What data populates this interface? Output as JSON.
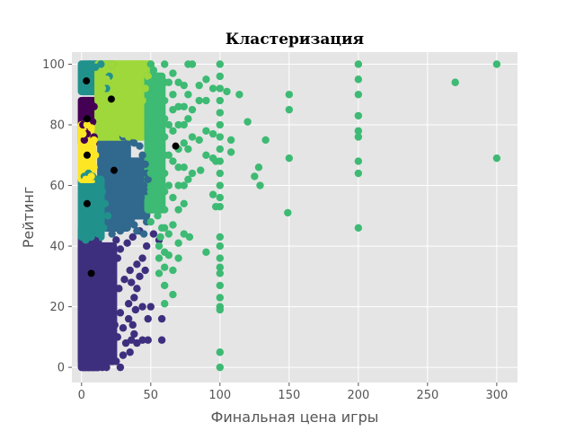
{
  "chart_data": {
    "type": "scatter",
    "title": "Кластеризация",
    "xlabel": "Финальная цена игры",
    "ylabel": "Рейтинг",
    "xlim": [
      -7,
      315
    ],
    "ylim": [
      -5,
      104
    ],
    "xticks": [
      0,
      50,
      100,
      150,
      200,
      250,
      300
    ],
    "yticks": [
      0,
      20,
      40,
      60,
      80,
      100
    ],
    "grid": true,
    "legend": "none",
    "colors": {
      "background": "#E5E5E5",
      "grid": "#FFFFFF",
      "centroid": "#000000",
      "cluster_dark": "#440154",
      "cluster_indigo": "#3E2F7E",
      "cluster_blue": "#31688E",
      "cluster_teal": "#21918C",
      "cluster_green": "#3DBA73",
      "cluster_lime": "#9FD83B",
      "cluster_yellow": "#FDE725"
    },
    "clusters": [
      {
        "color": "#3E2F7E",
        "regions": [
          [
            0,
            12,
            0,
            46
          ],
          [
            0,
            23,
            2,
            40
          ]
        ],
        "points": [
          [
            2,
            0
          ],
          [
            5,
            0
          ],
          [
            8,
            0
          ],
          [
            12,
            0
          ],
          [
            15,
            0
          ],
          [
            18,
            0
          ],
          [
            28,
            0
          ],
          [
            25,
            2
          ],
          [
            30,
            4
          ],
          [
            20,
            5
          ],
          [
            22,
            7
          ],
          [
            26,
            10
          ],
          [
            30,
            13
          ],
          [
            34,
            16
          ],
          [
            28,
            18
          ],
          [
            34,
            21
          ],
          [
            38,
            23
          ],
          [
            40,
            26
          ],
          [
            36,
            28
          ],
          [
            42,
            30
          ],
          [
            46,
            32
          ],
          [
            35,
            32
          ],
          [
            40,
            34
          ],
          [
            44,
            36
          ],
          [
            32,
            8
          ],
          [
            36,
            9
          ],
          [
            40,
            8
          ],
          [
            44,
            9
          ],
          [
            48,
            9
          ],
          [
            50,
            20
          ],
          [
            58,
            9
          ],
          [
            58,
            16
          ],
          [
            48,
            16
          ],
          [
            44,
            20
          ],
          [
            38,
            11
          ],
          [
            35,
            5
          ],
          [
            28,
            39
          ],
          [
            33,
            41
          ],
          [
            37,
            43
          ],
          [
            42,
            45
          ],
          [
            47,
            40
          ],
          [
            52,
            44
          ],
          [
            56,
            42
          ],
          [
            26,
            36
          ],
          [
            31,
            29
          ],
          [
            37,
            14
          ],
          [
            20,
            30
          ],
          [
            16,
            36
          ],
          [
            25,
            42
          ],
          [
            18,
            10
          ],
          [
            10,
            42
          ],
          [
            27,
            26
          ],
          [
            24,
            14
          ],
          [
            39,
            19
          ]
        ]
      },
      {
        "color": "#440154",
        "regions": [
          [
            0,
            9,
            74,
            88
          ]
        ],
        "points": [
          [
            2,
            75
          ],
          [
            4,
            77
          ],
          [
            6,
            79
          ],
          [
            8,
            81
          ],
          [
            3,
            83
          ],
          [
            5,
            85
          ],
          [
            7,
            87
          ],
          [
            9,
            86
          ],
          [
            1,
            80
          ],
          [
            9,
            76
          ]
        ]
      },
      {
        "color": "#31688E",
        "regions": [
          [
            14,
            33,
            46,
            76
          ],
          [
            18,
            47,
            50,
            68
          ]
        ],
        "points": [
          [
            30,
            76
          ],
          [
            34,
            75
          ],
          [
            38,
            74
          ],
          [
            42,
            73
          ],
          [
            44,
            70
          ],
          [
            46,
            67
          ],
          [
            47,
            64
          ],
          [
            45,
            60
          ],
          [
            43,
            56
          ],
          [
            40,
            52
          ],
          [
            36,
            49
          ],
          [
            32,
            47
          ],
          [
            28,
            45
          ],
          [
            22,
            44
          ],
          [
            18,
            46
          ],
          [
            47,
            48
          ],
          [
            45,
            44
          ],
          [
            44,
            50
          ],
          [
            46,
            58
          ],
          [
            48,
            62
          ],
          [
            40,
            45
          ],
          [
            38,
            47
          ]
        ]
      },
      {
        "color": "#21918C",
        "regions": [
          [
            0,
            14,
            43,
            62
          ],
          [
            0,
            20,
            91,
            100
          ]
        ],
        "points": [
          [
            2,
            63
          ],
          [
            5,
            64
          ],
          [
            8,
            63
          ],
          [
            12,
            62
          ],
          [
            15,
            58
          ],
          [
            17,
            54
          ],
          [
            19,
            50
          ],
          [
            16,
            46
          ],
          [
            12,
            44
          ],
          [
            7,
            43
          ],
          [
            3,
            42
          ],
          [
            18,
            92
          ],
          [
            20,
            96
          ],
          [
            22,
            100
          ],
          [
            14,
            100
          ],
          [
            10,
            99
          ],
          [
            6,
            100
          ],
          [
            2,
            99
          ]
        ]
      },
      {
        "color": "#FDE725",
        "regions": [
          [
            0,
            8,
            62,
            80
          ]
        ],
        "points": [
          [
            3,
            62
          ],
          [
            7,
            63
          ],
          [
            9,
            66
          ],
          [
            10,
            70
          ],
          [
            9,
            75
          ],
          [
            7,
            79
          ],
          [
            4,
            80
          ],
          [
            1,
            77
          ]
        ]
      },
      {
        "color": "#9FD83B",
        "regions": [
          [
            12,
            44,
            76,
            100
          ],
          [
            20,
            50,
            88,
            100
          ]
        ],
        "points": [
          [
            22,
            100
          ],
          [
            28,
            100
          ],
          [
            34,
            100
          ],
          [
            40,
            100
          ],
          [
            46,
            100
          ],
          [
            50,
            100
          ],
          [
            48,
            96
          ],
          [
            46,
            92
          ],
          [
            44,
            88
          ],
          [
            42,
            84
          ],
          [
            40,
            80
          ],
          [
            38,
            77
          ],
          [
            34,
            76
          ],
          [
            30,
            77
          ],
          [
            26,
            78
          ],
          [
            22,
            80
          ],
          [
            18,
            82
          ],
          [
            14,
            84
          ],
          [
            13,
            88
          ],
          [
            15,
            92
          ],
          [
            18,
            95
          ],
          [
            25,
            97
          ],
          [
            36,
            98
          ],
          [
            43,
            97
          ],
          [
            30,
            89
          ]
        ]
      },
      {
        "color": "#3DBA73",
        "regions": [
          [
            48,
            58,
            52,
            96
          ]
        ],
        "points": [
          [
            50,
            100
          ],
          [
            52,
            98
          ],
          [
            55,
            96
          ],
          [
            50,
            94
          ],
          [
            53,
            92
          ],
          [
            57,
            90
          ],
          [
            50,
            88
          ],
          [
            54,
            86
          ],
          [
            58,
            84
          ],
          [
            50,
            82
          ],
          [
            53,
            80
          ],
          [
            57,
            78
          ],
          [
            50,
            76
          ],
          [
            54,
            74
          ],
          [
            58,
            72
          ],
          [
            50,
            70
          ],
          [
            53,
            68
          ],
          [
            57,
            66
          ],
          [
            50,
            64
          ],
          [
            54,
            62
          ],
          [
            58,
            60
          ],
          [
            50,
            58
          ],
          [
            53,
            56
          ],
          [
            57,
            54
          ],
          [
            50,
            52
          ],
          [
            55,
            50
          ],
          [
            50,
            48
          ],
          [
            58,
            46
          ],
          [
            60,
            100
          ],
          [
            60,
            94
          ],
          [
            60,
            88
          ],
          [
            60,
            82
          ],
          [
            60,
            76
          ],
          [
            60,
            70
          ],
          [
            60,
            64
          ],
          [
            60,
            58
          ],
          [
            60,
            52
          ],
          [
            63,
            94
          ],
          [
            63,
            80
          ],
          [
            63,
            70
          ],
          [
            63,
            60
          ],
          [
            66,
            97
          ],
          [
            66,
            90
          ],
          [
            66,
            85
          ],
          [
            66,
            78
          ],
          [
            66,
            68
          ],
          [
            66,
            56
          ],
          [
            70,
            94
          ],
          [
            70,
            86
          ],
          [
            70,
            80
          ],
          [
            70,
            72
          ],
          [
            70,
            66
          ],
          [
            70,
            60
          ],
          [
            70,
            52
          ],
          [
            74,
            93
          ],
          [
            74,
            86
          ],
          [
            74,
            80
          ],
          [
            74,
            74
          ],
          [
            74,
            66
          ],
          [
            74,
            60
          ],
          [
            74,
            54
          ],
          [
            77,
            100
          ],
          [
            77,
            90
          ],
          [
            77,
            82
          ],
          [
            77,
            72
          ],
          [
            77,
            62
          ],
          [
            80,
            100
          ],
          [
            80,
            85
          ],
          [
            80,
            76
          ],
          [
            80,
            64
          ],
          [
            85,
            93
          ],
          [
            85,
            88
          ],
          [
            85,
            75
          ],
          [
            86,
            65
          ],
          [
            90,
            95
          ],
          [
            90,
            88
          ],
          [
            90,
            78
          ],
          [
            90,
            70
          ],
          [
            95,
            92
          ],
          [
            95,
            77
          ],
          [
            95,
            69
          ],
          [
            95,
            57
          ],
          [
            97,
            68
          ],
          [
            97,
            53
          ],
          [
            100,
            100
          ],
          [
            100,
            96
          ],
          [
            100,
            92
          ],
          [
            100,
            88
          ],
          [
            100,
            84
          ],
          [
            100,
            80
          ],
          [
            100,
            76
          ],
          [
            100,
            72
          ],
          [
            100,
            68
          ],
          [
            100,
            64
          ],
          [
            100,
            60
          ],
          [
            100,
            56
          ],
          [
            100,
            53
          ],
          [
            100,
            43
          ],
          [
            100,
            40
          ],
          [
            100,
            36
          ],
          [
            100,
            33
          ],
          [
            100,
            31
          ],
          [
            100,
            27
          ],
          [
            100,
            23
          ],
          [
            100,
            20
          ],
          [
            100,
            19
          ],
          [
            100,
            5
          ],
          [
            100,
            0
          ],
          [
            57,
            43
          ],
          [
            60,
            46
          ],
          [
            56,
            40
          ],
          [
            60,
            38
          ],
          [
            56,
            36
          ],
          [
            60,
            33
          ],
          [
            56,
            31
          ],
          [
            60,
            27
          ],
          [
            60,
            21
          ],
          [
            63,
            44
          ],
          [
            66,
            47
          ],
          [
            63,
            37
          ],
          [
            66,
            24
          ],
          [
            66,
            32
          ],
          [
            70,
            41
          ],
          [
            70,
            36
          ],
          [
            74,
            44
          ],
          [
            78,
            43
          ],
          [
            90,
            38
          ],
          [
            105,
            91
          ],
          [
            108,
            75
          ],
          [
            108,
            71
          ],
          [
            114,
            90
          ],
          [
            120,
            81
          ],
          [
            125,
            63
          ],
          [
            128,
            66
          ],
          [
            129,
            60
          ],
          [
            133,
            75
          ],
          [
            149,
            51
          ],
          [
            150,
            90
          ],
          [
            150,
            85
          ],
          [
            150,
            69
          ],
          [
            200,
            100
          ],
          [
            200,
            95
          ],
          [
            200,
            90
          ],
          [
            200,
            83
          ],
          [
            200,
            78
          ],
          [
            200,
            76
          ],
          [
            200,
            68
          ],
          [
            200,
            64
          ],
          [
            200,
            46
          ],
          [
            270,
            94
          ],
          [
            300,
            100
          ],
          [
            300,
            69
          ]
        ]
      }
    ],
    "centroids": [
      [
        3.5,
        94.5
      ],
      [
        21.5,
        88.5
      ],
      [
        4,
        82
      ],
      [
        68,
        73
      ],
      [
        4,
        70
      ],
      [
        23.5,
        65
      ],
      [
        4,
        54
      ],
      [
        7,
        31
      ]
    ]
  }
}
